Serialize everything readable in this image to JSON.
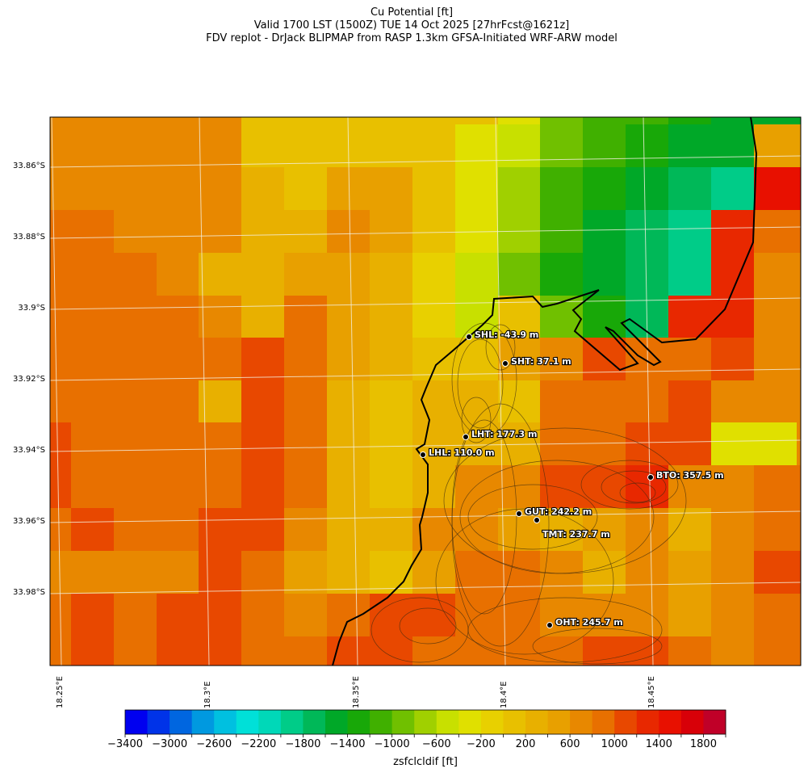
{
  "title": {
    "line1": "Cu Potential [ft]",
    "line2": "Valid 1700 LST (1500Z) TUE 14 Oct 2025 [27hrFcst@1621z]",
    "line3": "FDV replot - DrJack BLIPMAP from RASP 1.3km GFSA-Initiated WRF-ARW model"
  },
  "axes": {
    "lat_labels": [
      "33.86°S",
      "33.88°S",
      "33.9°S",
      "33.92°S",
      "33.94°S",
      "33.96°S",
      "33.98°S"
    ],
    "lon_labels": [
      "18.25°E",
      "18.3°E",
      "18.35°E",
      "18.4°E",
      "18.45°E"
    ]
  },
  "stations": [
    {
      "label": "SHL: -43.9 m"
    },
    {
      "label": "SHT: 37.1 m"
    },
    {
      "label": "LHT: 177.3 m"
    },
    {
      "label": "LHL: 110.0 m"
    },
    {
      "label": "BTO: 357.5 m"
    },
    {
      "label": "GUT: 242.2 m"
    },
    {
      "label": "TMT: 237.7 m"
    },
    {
      "label": "OHT: 245.7 m"
    }
  ],
  "colorbar": {
    "label": "zsfclcldif [ft]",
    "min": -3400,
    "max": 2000,
    "step": 200,
    "tick_labels": [
      "−3400",
      "−3000",
      "−2600",
      "−2200",
      "−1800",
      "−1400",
      "−1000",
      "−600",
      "−200",
      "200",
      "600",
      "1000",
      "1400",
      "1800"
    ],
    "colors": [
      "#0000f0",
      "#0033e8",
      "#0066e0",
      "#0099e0",
      "#00c0e0",
      "#00e0d8",
      "#00d8b8",
      "#00cc88",
      "#00b858",
      "#00a828",
      "#18a808",
      "#40b000",
      "#70c000",
      "#a0d000",
      "#c8e000",
      "#e0e000",
      "#e8d000",
      "#e8c000",
      "#e8b000",
      "#e8a000",
      "#e88800",
      "#e87000",
      "#e84800",
      "#e82800",
      "#e81000",
      "#d80008",
      "#c00028"
    ]
  },
  "chart_data": {
    "type": "heatmap",
    "title": "Cu Potential [ft]",
    "variable": "zsfclcldif [ft]",
    "cell_codes": {
      "A": 700,
      "B": 500,
      "C": 300,
      "D": 100,
      "E": -100,
      "F": -300,
      "G": -500,
      "H": -700,
      "I": -900,
      "J": -1100,
      "K": -1300,
      "L": -1500,
      "M": -1700,
      "N": -1900,
      "O": 900,
      "P": 1100,
      "Q": 1300,
      "R": 1500
    },
    "grid_rows": [
      "AAAAADDDDDDFIJJKLLL",
      "AAAAADDDDDFGIJKLLBB",
      "AAAAACDBBDFHJKLMNRR",
      "OOAAACCABDFHJLMNQOO",
      "OOOACCBBCEGIKLMNQAA",
      "OOOOACOBCEGDIKMQQAA",
      "OOOOOPOBCDDBAPOOPAA",
      "OOOOCPOCDCCDOOOPAAA",
      "POOOOPOCDCCCOOPPFFA",
      "POOOOPOCDCAAPPQAAOO",
      "OPOOPPACCAABCBACAOO",
      "AAAAPOBCDBOOACABAPP",
      "OPOPPOAOPPOOAAABAOO",
      "OPOPPOOPPOOOOPPOAOO"
    ]
  }
}
